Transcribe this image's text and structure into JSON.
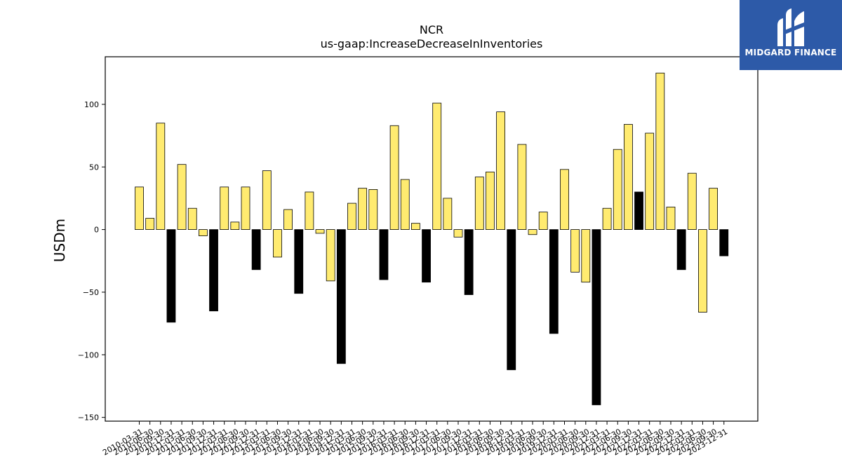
{
  "chart_data": {
    "type": "bar",
    "title": "NCR",
    "subtitle": "us-gaap:IncreaseDecreaseInInventories",
    "ylabel": "USDm",
    "ylim": [
      -153,
      138
    ],
    "yticks": [
      100,
      50,
      0,
      -50,
      -100,
      -150
    ],
    "colors": {
      "positive": "#ffeb70",
      "negative": "#000000",
      "edge": "#000000"
    },
    "categories": [
      "2010-03-31",
      "2010-06-30",
      "2010-09-30",
      "2010-12-31",
      "2011-03-31",
      "2011-06-30",
      "2011-09-30",
      "2011-12-31",
      "2012-03-31",
      "2012-06-30",
      "2012-09-30",
      "2012-12-31",
      "2013-03-31",
      "2013-06-30",
      "2013-09-30",
      "2013-12-31",
      "2014-03-31",
      "2014-06-30",
      "2014-09-30",
      "2014-12-31",
      "2015-03-31",
      "2015-06-30",
      "2015-09-30",
      "2015-12-31",
      "2016-03-31",
      "2016-06-30",
      "2016-09-30",
      "2016-12-31",
      "2017-03-31",
      "2017-06-30",
      "2017-09-30",
      "2017-12-31",
      "2018-03-31",
      "2018-06-30",
      "2018-09-30",
      "2018-12-31",
      "2019-03-31",
      "2019-06-30",
      "2019-09-30",
      "2019-12-31",
      "2020-03-31",
      "2020-06-30",
      "2020-09-30",
      "2020-12-31",
      "2021-03-31",
      "2021-06-30",
      "2021-09-30",
      "2021-12-31",
      "2022-03-31",
      "2022-06-30",
      "2022-09-30",
      "2022-12-31",
      "2023-03-31",
      "2023-06-30",
      "2023-09-30",
      "2023-12-31"
    ],
    "values": [
      34,
      9,
      85,
      -74,
      52,
      17,
      -5,
      -65,
      34,
      6,
      34,
      -32,
      47,
      -22,
      16,
      -51,
      30,
      -3,
      -41,
      -107,
      21,
      33,
      32,
      -40,
      83,
      40,
      5,
      -42,
      101,
      25,
      -6,
      -52,
      42,
      46,
      94,
      -112,
      68,
      -4,
      14,
      -83,
      48,
      -34,
      -42,
      -140,
      17,
      64,
      84,
      30,
      77,
      125,
      18,
      -32,
      45,
      -66,
      33,
      -21
    ],
    "bar_colors": [
      "p",
      "p",
      "p",
      "n",
      "p",
      "p",
      "p",
      "n",
      "p",
      "p",
      "p",
      "n",
      "p",
      "p",
      "p",
      "n",
      "p",
      "p",
      "p",
      "n",
      "p",
      "p",
      "p",
      "n",
      "p",
      "p",
      "p",
      "n",
      "p",
      "p",
      "p",
      "n",
      "p",
      "p",
      "p",
      "n",
      "p",
      "p",
      "p",
      "n",
      "p",
      "p",
      "p",
      "n",
      "p",
      "p",
      "p",
      "n",
      "p",
      "p",
      "p",
      "n",
      "p",
      "p",
      "p",
      "n"
    ]
  },
  "logo": {
    "text": "MIDGARD FINANCE"
  }
}
